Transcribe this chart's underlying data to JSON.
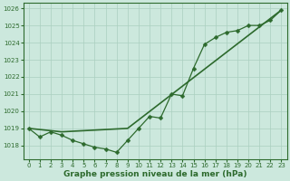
{
  "line1_x": [
    0,
    3,
    9,
    23
  ],
  "line1_y": [
    1019.0,
    1018.8,
    1019.0,
    1025.9
  ],
  "line2_x": [
    0,
    1,
    2,
    3,
    4,
    5,
    6,
    7,
    8,
    9,
    10,
    11,
    12,
    13,
    14,
    15,
    16,
    17,
    18,
    19,
    20,
    21,
    22,
    23
  ],
  "line2_y": [
    1019.0,
    1018.5,
    1018.8,
    1018.6,
    1018.3,
    1018.1,
    1017.9,
    1017.8,
    1017.6,
    1018.3,
    1019.0,
    1019.7,
    1019.6,
    1021.0,
    1020.9,
    1022.5,
    1023.9,
    1024.3,
    1024.6,
    1024.7,
    1025.0,
    1025.0,
    1025.3,
    1025.9
  ],
  "line_color": "#2d6a2d",
  "bg_color": "#cce8dd",
  "grid_color": "#aacfbf",
  "xlabel": "Graphe pression niveau de la mer (hPa)",
  "ylim_min": 1017.2,
  "ylim_max": 1026.3,
  "yticks": [
    1018,
    1019,
    1020,
    1021,
    1022,
    1023,
    1024,
    1025,
    1026
  ],
  "xticks": [
    0,
    1,
    2,
    3,
    4,
    5,
    6,
    7,
    8,
    9,
    10,
    11,
    12,
    13,
    14,
    15,
    16,
    17,
    18,
    19,
    20,
    21,
    22,
    23
  ],
  "marker": "D",
  "markersize": 2.5,
  "tick_fontsize": 5.0,
  "label_fontsize": 6.5
}
